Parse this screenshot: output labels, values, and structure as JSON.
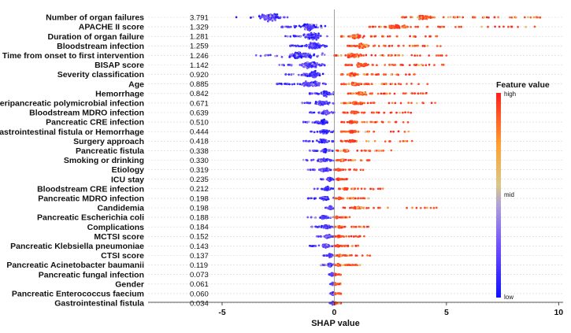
{
  "chart_data": {
    "type": "scatter",
    "subtype": "beeswarm",
    "title": "",
    "xlabel": "SHAP value",
    "xlim": [
      -8.3,
      10.2
    ],
    "xticks": [
      -5,
      0,
      5,
      10
    ],
    "x_tick_labels": [
      "-5",
      "0",
      "5",
      "10"
    ],
    "legend": {
      "title": "Feature value",
      "labels": [
        "high",
        "mid",
        "low"
      ],
      "colors": {
        "low": "#1010ff",
        "mid": "#c8a8b8",
        "high": "#ff1f1f"
      }
    },
    "features": [
      {
        "name": "Number of organ failures",
        "importance": "3.791",
        "low": [
          -4.5,
          -2.0
        ],
        "high": [
          3.0,
          9.4
        ]
      },
      {
        "name": "APACHE II score",
        "importance": "1.329",
        "low": [
          -2.4,
          -0.4
        ],
        "high": [
          1.5,
          9.4
        ]
      },
      {
        "name": "Duration of organ failure",
        "importance": "1.281",
        "low": [
          -2.2,
          -0.3
        ],
        "high": [
          0.3,
          4.6
        ]
      },
      {
        "name": "Bloodstream infection",
        "importance": "1.259",
        "low": [
          -2.0,
          -0.3
        ],
        "high": [
          0.6,
          4.9
        ]
      },
      {
        "name": "Time from onset to first intervention",
        "importance": "1.246",
        "low": [
          -3.8,
          -0.3
        ],
        "high": [
          0.0,
          5.1
        ]
      },
      {
        "name": "BISAP score",
        "importance": "1.142",
        "low": [
          -2.5,
          -0.3
        ],
        "high": [
          0.5,
          5.1
        ]
      },
      {
        "name": "Severity classification",
        "importance": "0.920",
        "low": [
          -2.2,
          -0.2
        ],
        "high": [
          0.3,
          3.6
        ]
      },
      {
        "name": "Age",
        "importance": "0.885",
        "low": [
          -2.6,
          -0.2
        ],
        "high": [
          0.3,
          4.3
        ]
      },
      {
        "name": "Hemorrhage",
        "importance": "0.842",
        "low": [
          -1.1,
          0.0
        ],
        "high": [
          0.6,
          4.5
        ]
      },
      {
        "name": "Peripancreatic polymicrobial infection",
        "importance": "0.671",
        "low": [
          -1.6,
          0.0
        ],
        "high": [
          0.3,
          4.7
        ]
      },
      {
        "name": "Bloodstream MDRO infection",
        "importance": "0.639",
        "low": [
          -1.1,
          0.0
        ],
        "high": [
          0.4,
          3.5
        ]
      },
      {
        "name": "Pancreatic CRE infection",
        "importance": "0.510",
        "low": [
          -1.4,
          0.0
        ],
        "high": [
          0.3,
          3.5
        ]
      },
      {
        "name": "Gastrointestinal fistula or Hemorrhage",
        "importance": "0.444",
        "low": [
          -1.2,
          0.0
        ],
        "high": [
          0.3,
          3.6
        ]
      },
      {
        "name": "Surgery approach",
        "importance": "0.418",
        "low": [
          -1.4,
          0.0
        ],
        "high": [
          0.3,
          3.5
        ]
      },
      {
        "name": "Pancreatic fistula",
        "importance": "0.338",
        "low": [
          -1.1,
          0.0
        ],
        "high": [
          0.1,
          2.6
        ]
      },
      {
        "name": "Smoking or drinking",
        "importance": "0.330",
        "low": [
          -1.4,
          0.0
        ],
        "high": [
          0.1,
          1.6
        ]
      },
      {
        "name": "Etiology",
        "importance": "0.319",
        "low": [
          -1.2,
          0.0
        ],
        "high": [
          0.0,
          1.3
        ]
      },
      {
        "name": "ICU stay",
        "importance": "0.235",
        "low": [
          -0.6,
          0.0
        ],
        "high": [
          0.1,
          0.6
        ]
      },
      {
        "name": "Bloodstream CRE infection",
        "importance": "0.212",
        "low": [
          -0.9,
          0.0
        ],
        "high": [
          0.2,
          2.2
        ]
      },
      {
        "name": "Pancreatic MDRO infection",
        "importance": "0.198",
        "low": [
          -1.2,
          0.0
        ],
        "high": [
          0.0,
          1.6
        ]
      },
      {
        "name": "Candidemia",
        "importance": "0.198",
        "low": [
          -0.5,
          0.0
        ],
        "high": [
          0.4,
          4.6
        ]
      },
      {
        "name": "Pancreatic Escherichia coli",
        "importance": "0.188",
        "low": [
          -1.3,
          0.0
        ],
        "high": [
          0.0,
          0.7
        ]
      },
      {
        "name": "Complications",
        "importance": "0.184",
        "low": [
          -1.1,
          0.0
        ],
        "high": [
          0.0,
          1.6
        ]
      },
      {
        "name": "MCTSI score",
        "importance": "0.152",
        "low": [
          -0.8,
          0.0
        ],
        "high": [
          0.0,
          1.4
        ]
      },
      {
        "name": "Pancreatic Klebsiella pneumoniae",
        "importance": "0.143",
        "low": [
          -1.1,
          0.0
        ],
        "high": [
          0.0,
          1.1
        ]
      },
      {
        "name": "CTSI score",
        "importance": "0.137",
        "low": [
          -0.5,
          0.0
        ],
        "high": [
          0.0,
          1.6
        ]
      },
      {
        "name": "Pancreatic Acinetobacter baumanii",
        "importance": "0.119",
        "low": [
          -0.6,
          0.0
        ],
        "high": [
          0.0,
          1.2
        ]
      },
      {
        "name": "Pancreatic fungal infection",
        "importance": "0.073",
        "low": [
          -0.3,
          0.0
        ],
        "high": [
          0.0,
          0.3
        ]
      },
      {
        "name": "Gender",
        "importance": "0.061",
        "low": [
          -0.2,
          0.0
        ],
        "high": [
          0.0,
          0.3
        ]
      },
      {
        "name": "Pancreatic Enterococcus faecium",
        "importance": "0.060",
        "low": [
          -0.2,
          0.0
        ],
        "high": [
          0.0,
          0.3
        ]
      },
      {
        "name": "Gastrointestinal fistula",
        "importance": "0.034",
        "low": [
          -0.2,
          0.0
        ],
        "high": [
          0.0,
          0.3
        ]
      }
    ]
  }
}
